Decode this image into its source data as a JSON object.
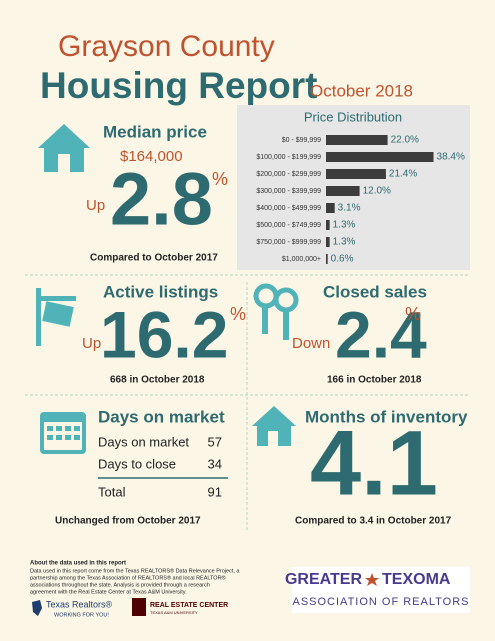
{
  "header": {
    "title": "Grayson County",
    "subtitle": "Housing Report",
    "date": "October 2018"
  },
  "median_price": {
    "label": "Median price",
    "price": "$164,000",
    "direction": "Up",
    "change": 2.8,
    "unit": "%",
    "note": "Compared to October 2017"
  },
  "price_distribution": {
    "title": "Price Distribution",
    "categories": [
      "$0 - $99,999",
      "$100,000 - $199,999",
      "$200,000 - $299,999",
      "$300,000 - $399,999",
      "$400,000 - $499,999",
      "$500,000 - $749,999",
      "$750,000 - $999,999",
      "$1,000,000+"
    ],
    "values": [
      22.0,
      38.4,
      21.4,
      12.0,
      3.1,
      1.3,
      1.3,
      0.6
    ],
    "value_labels": [
      "22.0%",
      "38.4%",
      "21.4%",
      "12.0%",
      "3.1%",
      "1.3%",
      "1.3%",
      "0.6%"
    ],
    "color": "#3c3c3c"
  },
  "active_listings": {
    "label": "Active listings",
    "direction": "Up",
    "change": 16.2,
    "unit": "%",
    "note": "668 in October 2018"
  },
  "closed_sales": {
    "label": "Closed sales",
    "direction": "Down",
    "change": 2.4,
    "unit": "%",
    "note": "166 in October 2018"
  },
  "days_on_market": {
    "label": "Days on market",
    "rows": [
      [
        "Days on market",
        57
      ],
      [
        "Days to close",
        34
      ]
    ],
    "total": [
      "Total",
      91
    ],
    "note": "Unchanged from October 2017"
  },
  "months_of_inventory": {
    "label": "Months of inventory",
    "value": 4.1,
    "note": "Compared to 3.4 in October 2017"
  },
  "footer": {
    "about_title": "About the data used in this report",
    "about_lines": [
      "Data used in this report come from the Texas REALTORS® Data Relevance Project, a",
      "partnership among the Texas Association of REALTORS® and local REALTOR®",
      "associations throughout the state. Analysis is provided through a research",
      "agreement with the Real Estate Center at Texas A&M University."
    ],
    "texas_realtors": "Texas Realtors®",
    "texas_realtors_tag": "WORKING FOR YOU!",
    "rec_name": "REAL ESTATE CENTER",
    "rec_sub": "TEXAS A&M UNIVERSITY",
    "assoc_line1a": "GREATER",
    "assoc_line1b": "TEXOMA",
    "assoc_line2": "ASSOCIATION OF REALTORS"
  }
}
